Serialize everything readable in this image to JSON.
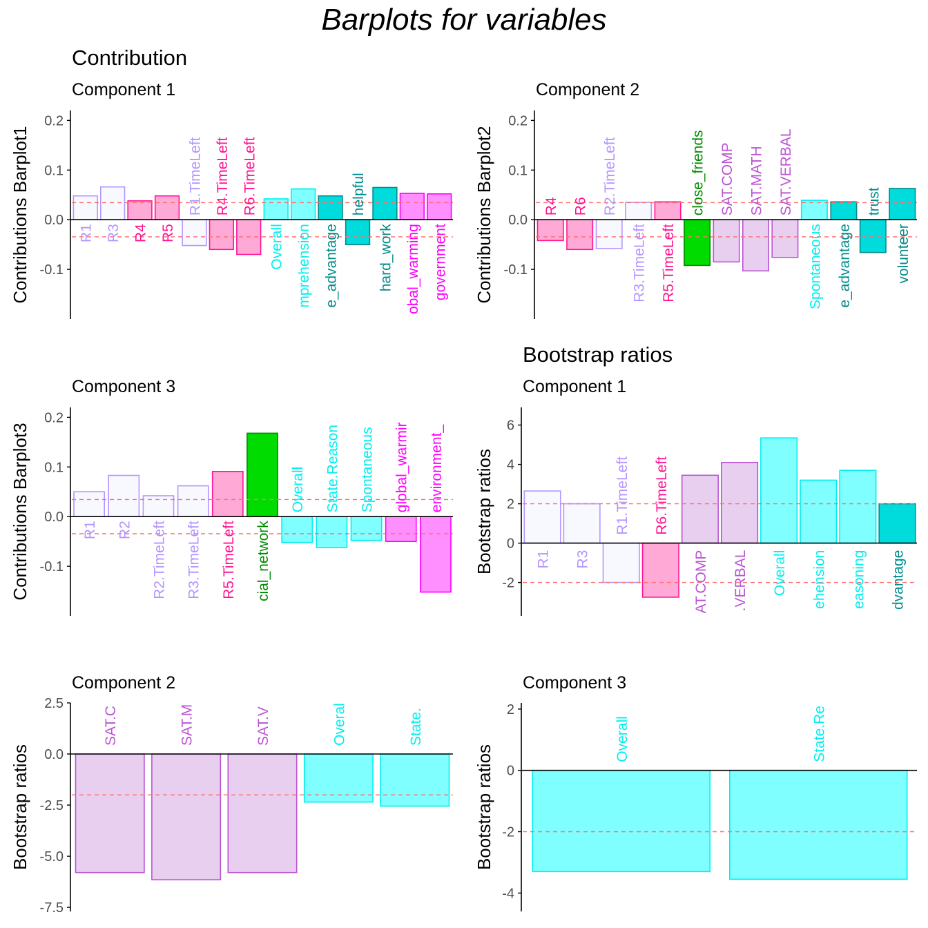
{
  "title": "Barplots for variables",
  "sections": {
    "contribution": "Contribution",
    "bootstrap": "Bootstrap ratios"
  },
  "colors": {
    "threshold_line": "#FF6F6F",
    "axis": "#000000",
    "tick_label": "#4D4D4D"
  },
  "chart_data": [
    {
      "id": "contrib-c1",
      "type": "bar",
      "subtitle": "Component 1",
      "ylabel": "Contributions Barplot1",
      "ylim": [
        -0.2,
        0.22
      ],
      "yticks": [
        -0.1,
        0.0,
        0.1,
        0.2
      ],
      "ytick_labels": [
        "-0.1",
        "0.0",
        "0.1",
        "0.2"
      ],
      "thresholds": [
        0.0345,
        -0.0345
      ],
      "categories": [
        "R1",
        "R3",
        "R4",
        "R5",
        "R1.TimeLeft",
        "R4.TimeLeft",
        "R6.TimeLeft",
        "Overall",
        "mprehension",
        "e_advantage",
        "helpful",
        "hard_work",
        "obal_warming",
        "government"
      ],
      "values": [
        0.048,
        0.066,
        0.038,
        0.048,
        -0.052,
        -0.06,
        -0.07,
        0.042,
        0.062,
        0.048,
        -0.05,
        0.065,
        0.053,
        0.052
      ],
      "fills": [
        "#F8F8FF",
        "#F8F8FF",
        "#FFA9D6",
        "#FFA9D6",
        "#F8F8FF",
        "#FFA9D6",
        "#FFA9D6",
        "#7FFFFF",
        "#7FFFFF",
        "#00DCDC",
        "#00DCDC",
        "#00DCDC",
        "#FF8FFF",
        "#FF8FFF"
      ],
      "strokes": [
        "#B496FF",
        "#B496FF",
        "#FF1493",
        "#FF1493",
        "#B496FF",
        "#FF1493",
        "#FF1493",
        "#00EEEE",
        "#00EEEE",
        "#008B8B",
        "#008B8B",
        "#008B8B",
        "#FF00FF",
        "#FF00FF"
      ],
      "label_colors": [
        "#B496FF",
        "#B496FF",
        "#FF1493",
        "#FF1493",
        "#B496FF",
        "#FF1493",
        "#FF1493",
        "#00EEEE",
        "#00EEEE",
        "#008B8B",
        "#008B8B",
        "#008B8B",
        "#FF00FF",
        "#FF00FF"
      ]
    },
    {
      "id": "contrib-c2",
      "type": "bar",
      "subtitle": "Component 2",
      "ylabel": "Contributions Barplot2",
      "ylim": [
        -0.2,
        0.22
      ],
      "yticks": [
        -0.1,
        0.0,
        0.1,
        0.2
      ],
      "ytick_labels": [
        "-0.1",
        "0.0",
        "0.1",
        "0.2"
      ],
      "thresholds": [
        0.0345,
        -0.0345
      ],
      "categories": [
        "R4",
        "R6",
        "R2.TimeLeft",
        "R3.TimeLeft",
        "R5.TimeLeft",
        "close_friends",
        "SAT.COMP",
        "SAT.MATH",
        "SAT.VERBAL",
        "Spontaneous",
        "e_advantage",
        "trust",
        "volunteer"
      ],
      "values": [
        -0.042,
        -0.06,
        -0.058,
        0.035,
        0.036,
        -0.092,
        -0.085,
        -0.103,
        -0.076,
        0.039,
        0.036,
        -0.066,
        0.063
      ],
      "fills": [
        "#FFA9D6",
        "#FFA9D6",
        "#F8F8FF",
        "#F8F8FF",
        "#FFA9D6",
        "#00DC00",
        "#E8CFF0",
        "#E8CFF0",
        "#E8CFF0",
        "#7FFFFF",
        "#00DCDC",
        "#00DCDC",
        "#00DCDC"
      ],
      "strokes": [
        "#FF1493",
        "#FF1493",
        "#B496FF",
        "#B496FF",
        "#FF1493",
        "#008B00",
        "#BA55D3",
        "#BA55D3",
        "#BA55D3",
        "#00EEEE",
        "#008B8B",
        "#008B8B",
        "#008B8B"
      ],
      "label_colors": [
        "#FF1493",
        "#FF1493",
        "#B496FF",
        "#B496FF",
        "#FF1493",
        "#008B00",
        "#BA55D3",
        "#BA55D3",
        "#BA55D3",
        "#00EEEE",
        "#008B8B",
        "#008B8B",
        "#008B8B"
      ]
    },
    {
      "id": "contrib-c3",
      "type": "bar",
      "subtitle": "Component 3",
      "ylabel": "Contributions Barplot3",
      "ylim": [
        -0.2,
        0.22
      ],
      "yticks": [
        -0.1,
        0.0,
        0.1,
        0.2
      ],
      "ytick_labels": [
        "-0.1",
        "0.0",
        "0.1",
        "0.2"
      ],
      "thresholds": [
        0.0345,
        -0.0345
      ],
      "categories": [
        "R1",
        "R2",
        "R2.TimeLeft",
        "R3.TimeLeft",
        "R5.TimeLeft",
        "cial_network",
        "Overall",
        "State.Reason",
        "Spontaneous",
        "global_warmir",
        "environment_"
      ],
      "values": [
        0.05,
        0.083,
        0.042,
        0.062,
        0.091,
        0.168,
        -0.052,
        -0.062,
        -0.048,
        -0.05,
        -0.152
      ],
      "fills": [
        "#F8F8FF",
        "#F8F8FF",
        "#F8F8FF",
        "#F8F8FF",
        "#FFA9D6",
        "#00DC00",
        "#7FFFFF",
        "#7FFFFF",
        "#7FFFFF",
        "#FF8FFF",
        "#FF8FFF"
      ],
      "strokes": [
        "#B496FF",
        "#B496FF",
        "#B496FF",
        "#B496FF",
        "#FF1493",
        "#008B00",
        "#00EEEE",
        "#00EEEE",
        "#00EEEE",
        "#FF00FF",
        "#FF00FF"
      ],
      "label_colors": [
        "#B496FF",
        "#B496FF",
        "#B496FF",
        "#B496FF",
        "#FF1493",
        "#008B00",
        "#00EEEE",
        "#00EEEE",
        "#00EEEE",
        "#FF00FF",
        "#FF00FF"
      ]
    },
    {
      "id": "boot-c1",
      "type": "bar",
      "subtitle": "Component 1",
      "ylabel": "Bootstrap ratios",
      "ylim": [
        -3.7,
        6.9
      ],
      "yticks": [
        -2,
        0,
        2,
        4,
        6
      ],
      "ytick_labels": [
        "-2",
        "0",
        "2",
        "4",
        "6"
      ],
      "thresholds": [
        2,
        -2
      ],
      "categories": [
        "R1",
        "R3",
        "R1.TimeLeft",
        "R6.TimeLeft",
        "AT.COMP",
        ".VERBAL",
        "Overall",
        "ehension",
        "easoning",
        "dvantage"
      ],
      "values": [
        2.65,
        2.0,
        -2.0,
        -2.75,
        3.45,
        4.1,
        5.35,
        3.2,
        3.7,
        2.0
      ],
      "fills": [
        "#F8F8FF",
        "#F8F8FF",
        "#F8F8FF",
        "#FFA9D6",
        "#E8CFF0",
        "#E8CFF0",
        "#7FFFFF",
        "#7FFFFF",
        "#7FFFFF",
        "#00DCDC"
      ],
      "strokes": [
        "#B496FF",
        "#B496FF",
        "#B496FF",
        "#FF1493",
        "#BA55D3",
        "#BA55D3",
        "#00EEEE",
        "#00EEEE",
        "#00EEEE",
        "#008B8B"
      ],
      "label_colors": [
        "#B496FF",
        "#B496FF",
        "#B496FF",
        "#FF1493",
        "#BA55D3",
        "#BA55D3",
        "#00EEEE",
        "#00EEEE",
        "#00EEEE",
        "#008B8B"
      ]
    },
    {
      "id": "boot-c2",
      "type": "bar",
      "subtitle": "Component 2",
      "ylabel": "Bootstrap ratios",
      "ylim": [
        -7.7,
        2.5
      ],
      "yticks": [
        -7.5,
        -5.0,
        -2.5,
        0.0,
        2.5
      ],
      "ytick_labels": [
        "-7.5",
        "-5.0",
        "-2.5",
        "0.0",
        "2.5"
      ],
      "thresholds": [
        -2
      ],
      "categories": [
        "SAT.C",
        "SAT.M",
        "SAT.V",
        "Overal",
        "State."
      ],
      "values": [
        -5.8,
        -6.15,
        -5.8,
        -2.35,
        -2.55
      ],
      "fills": [
        "#E8CFF0",
        "#E8CFF0",
        "#E8CFF0",
        "#7FFFFF",
        "#7FFFFF"
      ],
      "strokes": [
        "#BA55D3",
        "#BA55D3",
        "#BA55D3",
        "#00EEEE",
        "#00EEEE"
      ],
      "label_colors": [
        "#BA55D3",
        "#BA55D3",
        "#BA55D3",
        "#00EEEE",
        "#00EEEE"
      ]
    },
    {
      "id": "boot-c3",
      "type": "bar",
      "subtitle": "Component 3",
      "ylabel": "Bootstrap ratios",
      "ylim": [
        -4.6,
        2.2
      ],
      "yticks": [
        -4,
        -2,
        0,
        2
      ],
      "ytick_labels": [
        "-4",
        "-2",
        "0",
        "2"
      ],
      "thresholds": [
        -2
      ],
      "categories": [
        "Overall",
        "State.Re"
      ],
      "values": [
        -3.3,
        -3.55
      ],
      "fills": [
        "#7FFFFF",
        "#7FFFFF"
      ],
      "strokes": [
        "#00EEEE",
        "#00EEEE"
      ],
      "label_colors": [
        "#00EEEE",
        "#00EEEE"
      ]
    }
  ]
}
